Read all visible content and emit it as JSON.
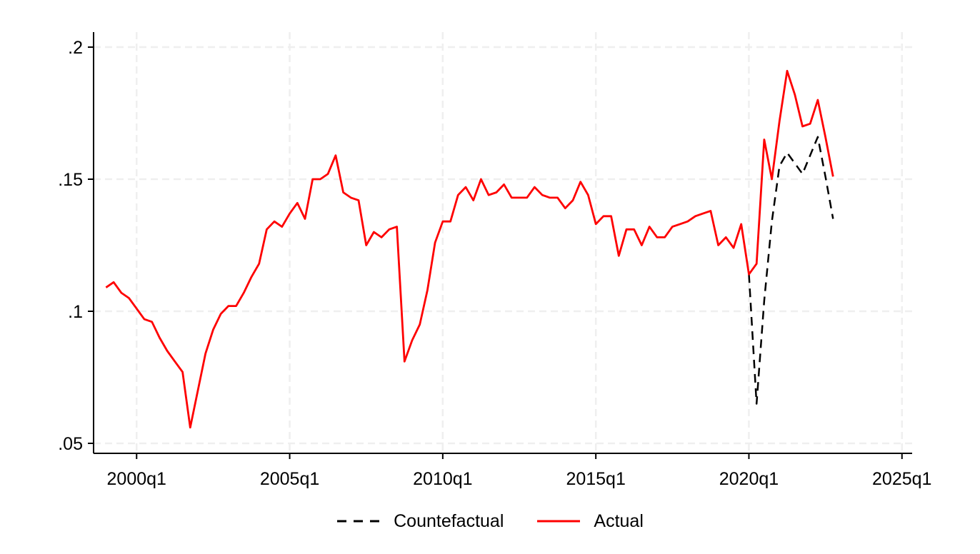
{
  "page": {
    "background": "#ffffff"
  },
  "chart_data": {
    "type": "line",
    "title": "",
    "xlabel": "",
    "ylabel": "",
    "x_axis": {
      "start_period": "1999q1",
      "frequency": "quarterly",
      "tick_labels": [
        "2000q1",
        "2005q1",
        "2010q1",
        "2015q1",
        "2020q1",
        "2025q1"
      ],
      "range": [
        "1999q1",
        "2025q1"
      ]
    },
    "y_axis": {
      "tick_labels": [
        ".05",
        ".1",
        ".15",
        ".2"
      ],
      "tick_values": [
        0.05,
        0.1,
        0.15,
        0.2
      ],
      "min": 0.046,
      "max": 0.206
    },
    "grid": {
      "horizontal": true,
      "vertical": true,
      "style": "dashed",
      "color": "#efefef"
    },
    "axis_color": "#000000",
    "legend": {
      "position": "bottom-center",
      "items": [
        {
          "label": "Countefactual",
          "style": "dashed",
          "color": "#000000"
        },
        {
          "label": "Actual",
          "style": "solid",
          "color": "#fe0000"
        }
      ]
    },
    "series": [
      {
        "name": "Countefactual",
        "color": "#000000",
        "line_style": "dashed",
        "start_period": "2020q1",
        "values": [
          0.114,
          0.065,
          0.104,
          0.134,
          0.155,
          0.16,
          0.156,
          0.152,
          0.159,
          0.166,
          0.151,
          0.135
        ]
      },
      {
        "name": "Actual",
        "color": "#fe0000",
        "line_style": "solid",
        "start_period": "1999q1",
        "values": [
          0.109,
          0.111,
          0.107,
          0.105,
          0.101,
          0.097,
          0.096,
          0.09,
          0.085,
          0.081,
          0.077,
          0.056,
          0.07,
          0.084,
          0.093,
          0.099,
          0.102,
          0.102,
          0.107,
          0.113,
          0.118,
          0.131,
          0.134,
          0.132,
          0.137,
          0.141,
          0.135,
          0.15,
          0.15,
          0.152,
          0.159,
          0.145,
          0.143,
          0.142,
          0.125,
          0.13,
          0.128,
          0.131,
          0.132,
          0.081,
          0.089,
          0.095,
          0.108,
          0.126,
          0.134,
          0.134,
          0.144,
          0.147,
          0.142,
          0.15,
          0.144,
          0.145,
          0.148,
          0.143,
          0.143,
          0.143,
          0.147,
          0.144,
          0.143,
          0.143,
          0.139,
          0.142,
          0.149,
          0.144,
          0.133,
          0.136,
          0.136,
          0.121,
          0.131,
          0.131,
          0.125,
          0.132,
          0.128,
          0.128,
          0.132,
          0.133,
          0.134,
          0.136,
          0.137,
          0.138,
          0.125,
          0.128,
          0.124,
          0.133,
          0.114,
          0.118,
          0.165,
          0.15,
          0.172,
          0.191,
          0.182,
          0.17,
          0.171,
          0.18,
          0.166,
          0.151
        ]
      }
    ]
  }
}
